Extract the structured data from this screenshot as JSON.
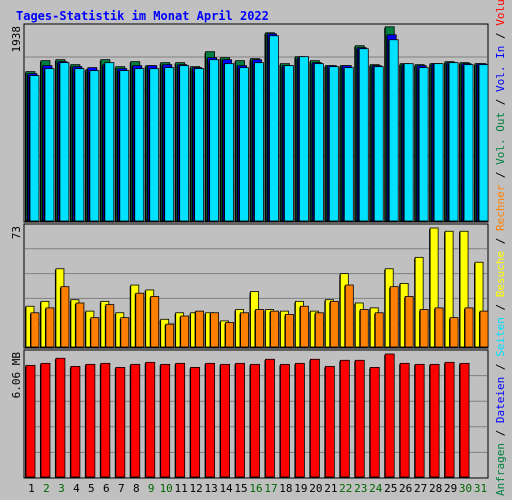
{
  "chart_data": {
    "type": "bar",
    "title": "Tages-Statistik im Monat April 2022",
    "categories": [
      "1",
      "2",
      "3",
      "4",
      "5",
      "6",
      "7",
      "8",
      "9",
      "10",
      "11",
      "12",
      "13",
      "14",
      "15",
      "16",
      "17",
      "18",
      "19",
      "20",
      "21",
      "22",
      "23",
      "24",
      "25",
      "26",
      "27",
      "28",
      "29",
      "30",
      "31"
    ],
    "category_colors": [
      "#000000",
      "#006600",
      "#006600",
      "#000000",
      "#000000",
      "#000000",
      "#000000",
      "#000000",
      "#006600",
      "#006600",
      "#000000",
      "#000000",
      "#000000",
      "#000000",
      "#000000",
      "#006600",
      "#006600",
      "#000000",
      "#000000",
      "#000000",
      "#000000",
      "#006600",
      "#006600",
      "#006600",
      "#000000",
      "#000000",
      "#000000",
      "#000000",
      "#000000",
      "#006600",
      "#006600"
    ],
    "panels": [
      {
        "max_label": "1938",
        "max_value": 1938,
        "series": [
          {
            "name": "Anfragen",
            "color": "#008040",
            "values": [
              1500,
              1610,
              1620,
              1570,
              1520,
              1620,
              1550,
              1600,
              1560,
              1590,
              1590,
              1550,
              1700,
              1640,
              1610,
              1630,
              1890,
              1580,
              1650,
              1610,
              1560,
              1560,
              1760,
              1570,
              1950,
              1580,
              1570,
              1580,
              1600,
              1590,
              1580
            ]
          },
          {
            "name": "Dateien",
            "color": "#0000ff",
            "values": [
              1480,
              1560,
              1600,
              1550,
              1540,
              1570,
              1530,
              1560,
              1560,
              1570,
              1570,
              1540,
              1640,
              1620,
              1560,
              1620,
              1880,
              1560,
              1640,
              1590,
              1560,
              1560,
              1740,
              1560,
              1870,
              1570,
              1560,
              1580,
              1590,
              1580,
              1580
            ]
          },
          {
            "name": "Seiten",
            "color": "#00e0ff",
            "values": [
              1460,
              1530,
              1590,
              1530,
              1510,
              1590,
              1510,
              1530,
              1530,
              1540,
              1560,
              1530,
              1620,
              1580,
              1540,
              1590,
              1860,
              1560,
              1650,
              1580,
              1550,
              1540,
              1730,
              1550,
              1820,
              1580,
              1540,
              1580,
              1590,
              1570,
              1570
            ]
          }
        ]
      },
      {
        "max_label": "73",
        "max_value": 73,
        "series": [
          {
            "name": "Besuche",
            "color": "#ffff00",
            "values": [
              25,
              28,
              48,
              29,
              22,
              28,
              21,
              38,
              35,
              17,
              21,
              21,
              21,
              16,
              23,
              34,
              23,
              22,
              28,
              22,
              29,
              45,
              27,
              24,
              48,
              39,
              55,
              73,
              71,
              71,
              52
            ]
          },
          {
            "name": "Rechner",
            "color": "#ff8000",
            "values": [
              21,
              24,
              37,
              27,
              18,
              26,
              18,
              33,
              31,
              14,
              19,
              22,
              21,
              15,
              21,
              23,
              22,
              20,
              25,
              21,
              28,
              38,
              23,
              21,
              37,
              31,
              23,
              24,
              18,
              24,
              22
            ]
          }
        ]
      },
      {
        "max_label": "6.06 MB",
        "max_value": 6.06,
        "series": [
          {
            "name": "Volumen",
            "color": "#ff0000",
            "values": [
              5.5,
              5.6,
              5.85,
              5.45,
              5.55,
              5.6,
              5.4,
              5.55,
              5.65,
              5.55,
              5.6,
              5.4,
              5.6,
              5.55,
              5.6,
              5.55,
              5.8,
              5.55,
              5.6,
              5.8,
              5.45,
              5.75,
              5.75,
              5.4,
              6.06,
              5.6,
              5.55,
              5.55,
              5.65,
              5.6,
              0
            ]
          }
        ]
      }
    ],
    "legend": {
      "placement": "right-vertical",
      "entries": [
        {
          "text": "Anfragen",
          "color": "#008040"
        },
        {
          "text": "/",
          "color": "#000000"
        },
        {
          "text": "Dateien",
          "color": "#0000ff"
        },
        {
          "text": "/",
          "color": "#000000"
        },
        {
          "text": "Seiten",
          "color": "#00e0ff"
        },
        {
          "text": "/",
          "color": "#000000"
        },
        {
          "text": "Besuche",
          "color": "#ffff00"
        },
        {
          "text": "/",
          "color": "#000000"
        },
        {
          "text": "Rechner",
          "color": "#ff8000"
        },
        {
          "text": "/",
          "color": "#000000"
        },
        {
          "text": "Vol. Out",
          "color": "#008040"
        },
        {
          "text": "/",
          "color": "#000000"
        },
        {
          "text": "Vol. In",
          "color": "#0000ff"
        },
        {
          "text": "/",
          "color": "#000000"
        },
        {
          "text": "Volumen",
          "color": "#ff0000"
        }
      ]
    },
    "grid": true
  }
}
